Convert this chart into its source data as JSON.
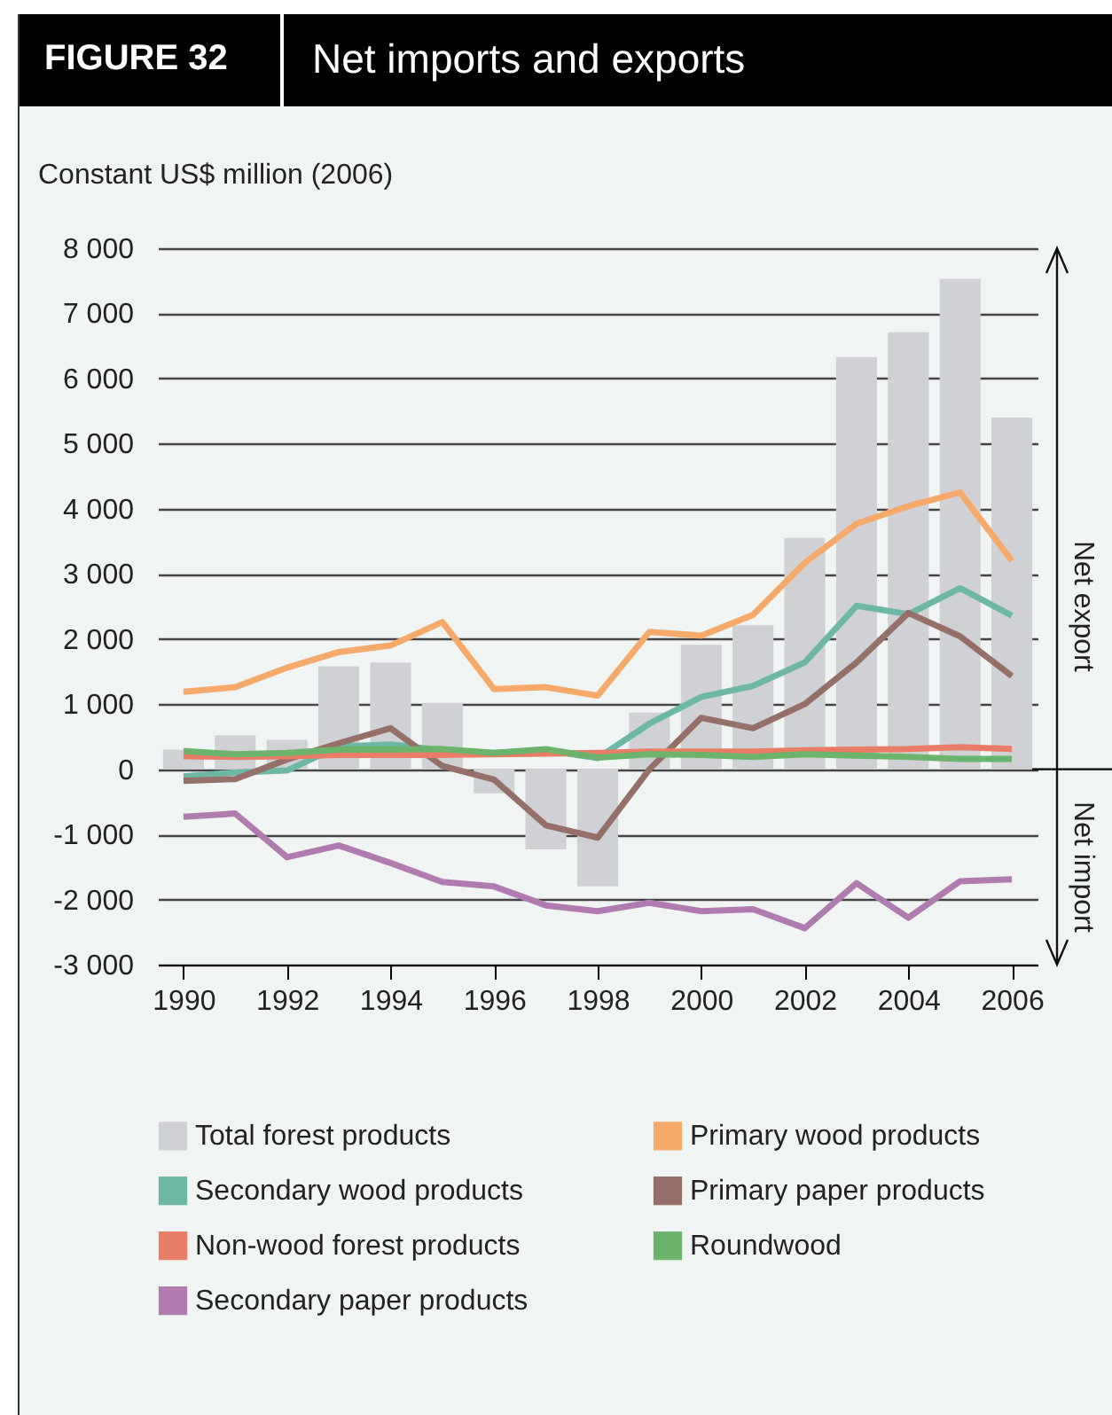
{
  "chart_data": {
    "type": "line",
    "title": "Net imports and exports",
    "ylabel": "Constant US$ million (2006)",
    "annotations": [
      "FIGURE 32",
      "Net export",
      "Net import"
    ],
    "categories": [
      "1990",
      null,
      "1992",
      null,
      "1994",
      null,
      "1996",
      null,
      "1998",
      null,
      "2000",
      null,
      "2002",
      null,
      "2004",
      null,
      "2006"
    ],
    "ylim": [
      -3000,
      8000
    ],
    "yticks": [
      {
        "value": -3000,
        "label": "-3 000"
      },
      {
        "value": -2000,
        "label": "-2 000"
      },
      {
        "value": -1000,
        "label": "-1 000"
      },
      0,
      {
        "value": 1000,
        "label": "1 000"
      },
      {
        "value": 2000,
        "label": "2 000"
      },
      {
        "value": 3000,
        "label": "3 000"
      },
      {
        "value": 4000,
        "label": "4 000"
      },
      {
        "value": 5000,
        "label": "5 000"
      },
      {
        "value": 6000,
        "label": "6 000"
      },
      {
        "value": 7000,
        "label": "7 000"
      },
      {
        "value": 8000,
        "label": "8 000"
      }
    ],
    "grid": "y",
    "legend": "bottom",
    "series": [
      {
        "name": "Total forest products",
        "type": "bar",
        "color": "#d0d1d5",
        "values": [
          300,
          520,
          450,
          1580,
          1640,
          1020,
          -370,
          -1230,
          -1800,
          870,
          1910,
          2210,
          3550,
          6330,
          6710,
          7530,
          5400
        ]
      },
      {
        "name": "Primary wood products",
        "color": "#f5a96b",
        "values": [
          1190,
          1260,
          1560,
          1800,
          1900,
          2260,
          1230,
          1260,
          1130,
          2110,
          2050,
          2370,
          3170,
          3770,
          4040,
          4250,
          3200
        ]
      },
      {
        "name": "Secondary wood products",
        "color": "#6fb7a5",
        "values": [
          -110,
          -50,
          -20,
          350,
          380,
          290,
          250,
          290,
          170,
          700,
          1110,
          1280,
          1640,
          2510,
          2380,
          2780,
          2360
        ]
      },
      {
        "name": "Primary paper products",
        "color": "#957068",
        "values": [
          -180,
          -150,
          150,
          400,
          630,
          50,
          -160,
          -860,
          -1050,
          0,
          790,
          630,
          1000,
          1640,
          2400,
          2040,
          1430
        ]
      },
      {
        "name": "Non-wood forest products",
        "color": "#e97c66",
        "values": [
          200,
          190,
          200,
          220,
          220,
          220,
          230,
          240,
          250,
          270,
          270,
          270,
          290,
          300,
          310,
          340,
          310
        ]
      },
      {
        "name": "Roundwood",
        "color": "#6cb36c",
        "values": [
          280,
          230,
          250,
          300,
          300,
          310,
          250,
          310,
          180,
          230,
          220,
          190,
          230,
          210,
          190,
          160,
          160
        ]
      },
      {
        "name": "Secondary paper products",
        "color": "#b07cb0",
        "values": [
          -730,
          -680,
          -1350,
          -1170,
          -1440,
          -1730,
          -1800,
          -2090,
          -2180,
          -2050,
          -2180,
          -2150,
          -2440,
          -1750,
          -2280,
          -1720,
          -1690
        ]
      }
    ]
  }
}
